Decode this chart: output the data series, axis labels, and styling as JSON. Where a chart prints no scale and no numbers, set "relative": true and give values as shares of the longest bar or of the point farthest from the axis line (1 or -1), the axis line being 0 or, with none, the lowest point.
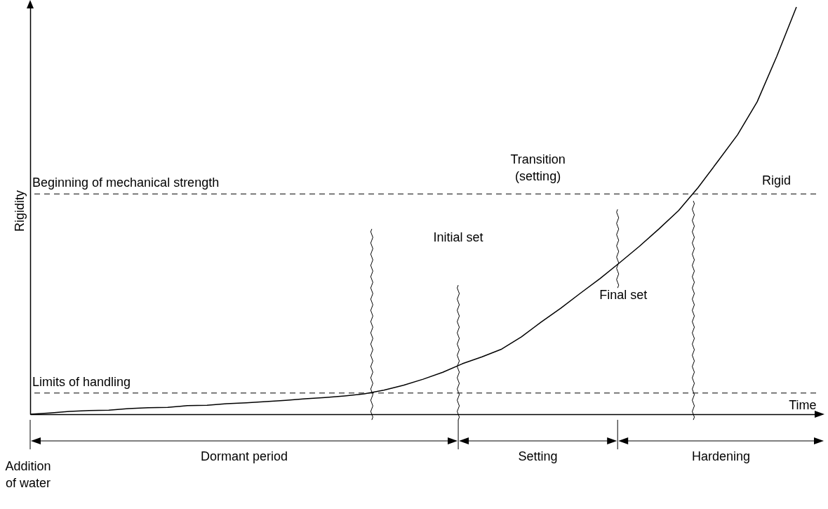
{
  "chart_data": {
    "type": "line",
    "xlabel": "Time",
    "ylabel": "Rigidity",
    "relative": true,
    "color": "#000000",
    "categories": [
      null,
      null,
      null,
      null,
      null,
      null,
      null,
      null,
      null,
      null,
      null,
      null,
      null,
      null,
      null,
      null,
      null,
      null,
      null,
      null,
      null,
      null,
      null,
      null,
      null,
      null,
      null,
      null,
      null,
      null,
      null,
      null,
      null,
      null,
      null,
      null,
      null,
      null,
      null,
      null,
      null
    ],
    "values": [
      0,
      0.003,
      0.007,
      0.009,
      0.01,
      0.014,
      0.016,
      0.017,
      0.021,
      0.022,
      0.026,
      0.028,
      0.031,
      0.034,
      0.038,
      0.041,
      0.045,
      0.05,
      0.059,
      0.071,
      0.086,
      0.103,
      0.124,
      0.141,
      0.16,
      0.19,
      0.226,
      0.26,
      0.297,
      0.333,
      0.372,
      0.412,
      0.455,
      0.5,
      0.557,
      0.621,
      0.686,
      0.767,
      0.879,
      1,
      null
    ],
    "ref_lines": [
      {
        "axis": "y",
        "value": 0.052,
        "label": "Limits of handling",
        "line_style": "dashed"
      },
      {
        "axis": "y",
        "value": 0.541,
        "label": "Beginning of mechanical strength",
        "line_style": "dashed"
      }
    ],
    "annotations": [
      "Transition (setting)",
      "Rigid",
      "Dormant period",
      "Setting",
      "Hardening",
      "Addition of water",
      "Initial set",
      "Final set"
    ]
  }
}
